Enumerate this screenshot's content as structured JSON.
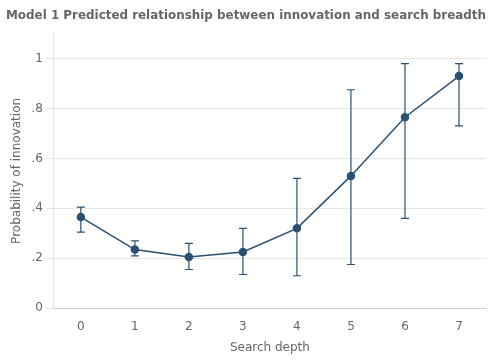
{
  "chart_data": {
    "type": "line",
    "title": "Model 1 Predicted relationship between innovation and search breadth",
    "xlabel": "Search depth",
    "ylabel": "Probability of innovation",
    "x": [
      0,
      1,
      2,
      3,
      4,
      5,
      6,
      7
    ],
    "values": [
      0.365,
      0.235,
      0.205,
      0.225,
      0.32,
      0.53,
      0.765,
      0.93
    ],
    "upper": [
      0.405,
      0.27,
      0.26,
      0.32,
      0.52,
      0.875,
      0.98,
      0.98
    ],
    "lower": [
      0.305,
      0.21,
      0.155,
      0.135,
      0.13,
      0.175,
      0.36,
      0.73
    ],
    "color": "#2A5072",
    "marker": "circle",
    "xlim": [
      -0.5,
      7.5
    ],
    "xticks": [
      0,
      1,
      2,
      3,
      4,
      5,
      6,
      7
    ],
    "ylim": [
      0,
      1.1
    ],
    "yticks": [
      0,
      {
        "value": 0.2,
        "label": ".2"
      },
      {
        "value": 0.4,
        "label": ".4"
      },
      {
        "value": 0.6,
        "label": ".6"
      },
      {
        "value": 0.8,
        "label": ".8"
      },
      1
    ],
    "grid": "y"
  }
}
